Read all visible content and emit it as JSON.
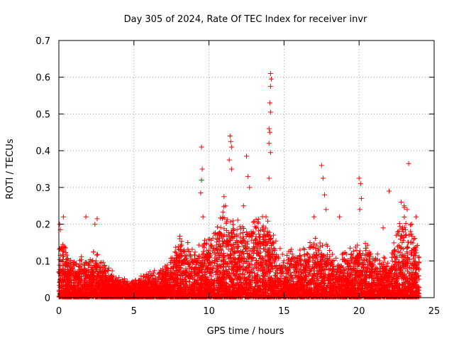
{
  "chart_data": {
    "type": "scatter",
    "title": "Day 305 of 2024, Rate Of TEC Index for receiver invr",
    "xlabel": "GPS time / hours",
    "ylabel": "ROTI / TECUs",
    "xlim": [
      0,
      25
    ],
    "ylim": [
      0,
      0.7
    ],
    "x_ticks": [
      0,
      5,
      10,
      15,
      20,
      25
    ],
    "y_ticks": [
      0,
      0.1,
      0.2,
      0.3,
      0.4,
      0.5,
      0.6,
      0.7
    ],
    "x_tick_labels": [
      "0",
      "5",
      "10",
      "15",
      "20",
      "25"
    ],
    "y_tick_labels": [
      "0",
      "0.1",
      "0.2",
      "0.3",
      "0.4",
      "0.5",
      "0.6",
      "0.7"
    ],
    "grid": true,
    "marker": "+",
    "series_color": "#ff0000",
    "envelope": {
      "description": "typical upper bound of the dense ROTI band by hour",
      "hours": [
        0,
        0.5,
        1,
        2,
        2.5,
        3,
        4,
        5,
        6,
        7,
        7.5,
        8,
        9,
        10,
        11,
        12,
        13,
        14,
        14.5,
        15,
        16,
        17,
        18,
        19,
        20,
        21,
        22,
        22.5,
        23,
        23.5,
        24
      ],
      "roti_max": [
        0.16,
        0.11,
        0.09,
        0.09,
        0.12,
        0.08,
        0.05,
        0.04,
        0.06,
        0.07,
        0.09,
        0.14,
        0.12,
        0.14,
        0.22,
        0.18,
        0.2,
        0.19,
        0.13,
        0.1,
        0.12,
        0.14,
        0.12,
        0.1,
        0.13,
        0.11,
        0.09,
        0.16,
        0.2,
        0.16,
        0.12
      ]
    },
    "outliers": [
      {
        "x": 0.05,
        "y": 0.2
      },
      {
        "x": 0.1,
        "y": 0.185
      },
      {
        "x": 0.3,
        "y": 0.22
      },
      {
        "x": 1.8,
        "y": 0.22
      },
      {
        "x": 2.4,
        "y": 0.2
      },
      {
        "x": 2.55,
        "y": 0.215
      },
      {
        "x": 9.5,
        "y": 0.41
      },
      {
        "x": 9.55,
        "y": 0.35
      },
      {
        "x": 9.5,
        "y": 0.32
      },
      {
        "x": 9.45,
        "y": 0.285
      },
      {
        "x": 9.6,
        "y": 0.22
      },
      {
        "x": 11.4,
        "y": 0.44
      },
      {
        "x": 11.45,
        "y": 0.425
      },
      {
        "x": 11.5,
        "y": 0.41
      },
      {
        "x": 11.35,
        "y": 0.375
      },
      {
        "x": 11.5,
        "y": 0.35
      },
      {
        "x": 11.0,
        "y": 0.275
      },
      {
        "x": 11.1,
        "y": 0.25
      },
      {
        "x": 12.5,
        "y": 0.385
      },
      {
        "x": 12.6,
        "y": 0.33
      },
      {
        "x": 12.7,
        "y": 0.3
      },
      {
        "x": 12.3,
        "y": 0.25
      },
      {
        "x": 14.1,
        "y": 0.61
      },
      {
        "x": 14.15,
        "y": 0.595
      },
      {
        "x": 14.1,
        "y": 0.575
      },
      {
        "x": 14.05,
        "y": 0.53
      },
      {
        "x": 14.1,
        "y": 0.505
      },
      {
        "x": 14.0,
        "y": 0.46
      },
      {
        "x": 14.05,
        "y": 0.45
      },
      {
        "x": 14.0,
        "y": 0.42
      },
      {
        "x": 14.1,
        "y": 0.395
      },
      {
        "x": 14.0,
        "y": 0.325
      },
      {
        "x": 13.8,
        "y": 0.22
      },
      {
        "x": 17.5,
        "y": 0.36
      },
      {
        "x": 17.6,
        "y": 0.325
      },
      {
        "x": 17.7,
        "y": 0.28
      },
      {
        "x": 17.8,
        "y": 0.24
      },
      {
        "x": 17.0,
        "y": 0.22
      },
      {
        "x": 18.7,
        "y": 0.22
      },
      {
        "x": 20.0,
        "y": 0.325
      },
      {
        "x": 20.1,
        "y": 0.31
      },
      {
        "x": 20.15,
        "y": 0.27
      },
      {
        "x": 20.05,
        "y": 0.24
      },
      {
        "x": 21.6,
        "y": 0.19
      },
      {
        "x": 22.0,
        "y": 0.29
      },
      {
        "x": 22.8,
        "y": 0.26
      },
      {
        "x": 23.0,
        "y": 0.25
      },
      {
        "x": 23.2,
        "y": 0.24
      },
      {
        "x": 23.3,
        "y": 0.365
      },
      {
        "x": 23.8,
        "y": 0.22
      },
      {
        "x": 23.5,
        "y": 0.2
      }
    ]
  }
}
